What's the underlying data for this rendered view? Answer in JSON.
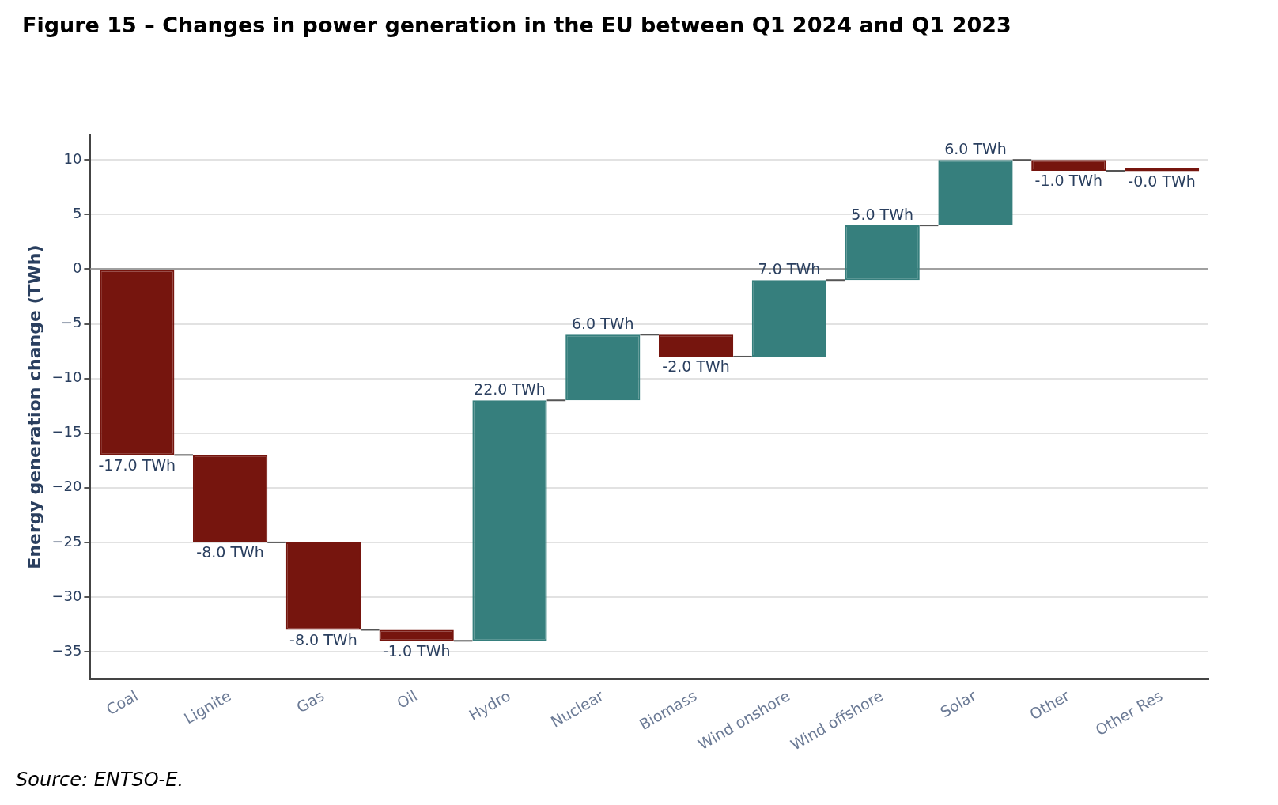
{
  "chart_data": {
    "type": "bar",
    "title": "Figure 15 – Changes in power generation in the EU between Q1 2024 and Q1 2023",
    "ylabel": "Energy generation change (TWh)",
    "categories": [
      "Coal",
      "Lignite",
      "Gas",
      "Oil",
      "Hydro",
      "Nuclear",
      "Biomass",
      "Wind onshore",
      "Wind offshore",
      "Solar",
      "Other",
      "Other Res"
    ],
    "base": [
      0,
      -17,
      -25,
      -33,
      -34,
      -12,
      -6,
      -8,
      -1,
      4,
      10,
      9
    ],
    "values": [
      -17,
      -8,
      -8,
      -1,
      22,
      6,
      -2,
      7,
      5,
      6,
      -1,
      -0.04
    ],
    "colors": [
      "#76150e",
      "#76150e",
      "#76150e",
      "#76150e",
      "#367f7d",
      "#367f7d",
      "#76150e",
      "#367f7d",
      "#367f7d",
      "#367f7d",
      "#76150e",
      "#76150e"
    ],
    "value_labels": [
      "-17.0 TWh",
      "-8.0 TWh",
      "-8.0 TWh",
      "-1.0 TWh",
      "22.0 TWh",
      "6.0 TWh",
      "-2.0 TWh",
      "7.0 TWh",
      "5.0 TWh",
      "6.0 TWh",
      "-1.0 TWh",
      "-0.0 TWh"
    ],
    "ylim": [
      -37.5,
      12.3
    ],
    "yticks": [
      {
        "value": 10,
        "label": "10"
      },
      {
        "value": 5,
        "label": "5"
      },
      {
        "value": 0,
        "label": "0"
      },
      {
        "value": -5,
        "label": "−5"
      },
      {
        "value": -10,
        "label": "−10"
      },
      {
        "value": -15,
        "label": "−15"
      },
      {
        "value": -20,
        "label": "−20"
      },
      {
        "value": -25,
        "label": "−25"
      },
      {
        "value": -30,
        "label": "−30"
      },
      {
        "value": -35,
        "label": "−35"
      }
    ],
    "grid": "y",
    "legend": false,
    "ref_lines": [
      {
        "axis": "y",
        "value": 0,
        "color": "#a0a0a0"
      }
    ],
    "annotations": [
      "Source: ENTSO-E."
    ]
  }
}
